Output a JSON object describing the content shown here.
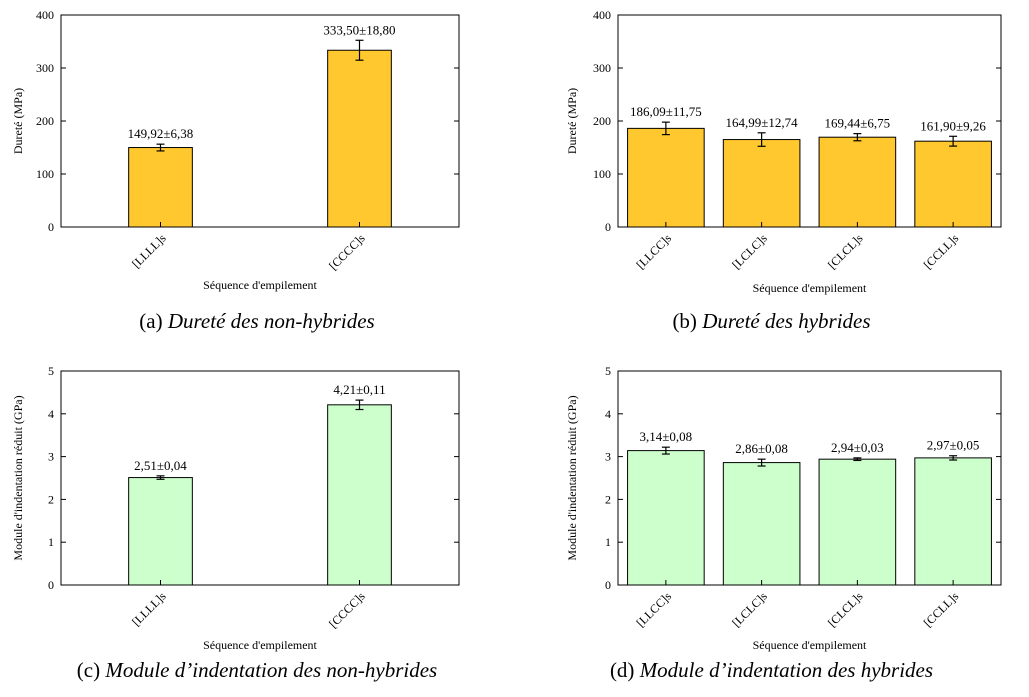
{
  "chart_data": [
    {
      "panel": "a",
      "type": "bar",
      "categories": [
        "[LLLL]s",
        "[CCCC]s"
      ],
      "values": [
        149.92,
        333.5
      ],
      "errors": [
        6.38,
        18.8
      ],
      "data_labels": [
        "149,92±6,38",
        "333,50±18,80"
      ],
      "xlabel": "Séquence d'empilement",
      "ylabel": "Dureté (MPa)",
      "ylim": [
        0,
        400
      ],
      "yticks": [
        0,
        100,
        200,
        300,
        400
      ],
      "bar_color": "#FFC82E",
      "caption_letter": "(a)",
      "caption_title": "Dureté des non-hybrides"
    },
    {
      "panel": "b",
      "type": "bar",
      "categories": [
        "[LLCC]s",
        "[LCLC]s",
        "[CLCL]s",
        "[CCLL]s"
      ],
      "values": [
        186.09,
        164.99,
        169.44,
        161.9
      ],
      "errors": [
        11.75,
        12.74,
        6.75,
        9.26
      ],
      "data_labels": [
        "186,09±11,75",
        "164,99±12,74",
        "169,44±6,75",
        "161,90±9,26"
      ],
      "xlabel": "Séquence d'empilement",
      "ylabel": "Dureté (MPa)",
      "ylim": [
        0,
        400
      ],
      "yticks": [
        0,
        100,
        200,
        300,
        400
      ],
      "bar_color": "#FFC82E",
      "caption_letter": "(b)",
      "caption_title": "Dureté des hybrides"
    },
    {
      "panel": "c",
      "type": "bar",
      "categories": [
        "[LLLL]s",
        "[CCCC]s"
      ],
      "values": [
        2.51,
        4.21
      ],
      "errors": [
        0.04,
        0.11
      ],
      "data_labels": [
        "2,51±0,04",
        "4,21±0,11"
      ],
      "xlabel": "Séquence d'empilement",
      "ylabel": "Module d'indentation réduit (GPa)",
      "ylim": [
        0,
        5
      ],
      "yticks": [
        0,
        1,
        2,
        3,
        4,
        5
      ],
      "bar_color": "#CCFFCC",
      "caption_letter": "(c)",
      "caption_title": "Module d’indentation des non-hybrides"
    },
    {
      "panel": "d",
      "type": "bar",
      "categories": [
        "[LLCC]s",
        "[LCLC]s",
        "[CLCL]s",
        "[CCLL]s"
      ],
      "values": [
        3.14,
        2.86,
        2.94,
        2.97
      ],
      "errors": [
        0.08,
        0.08,
        0.03,
        0.05
      ],
      "data_labels": [
        "3,14±0,08",
        "2,86±0,08",
        "2,94±0,03",
        "2,97±0,05"
      ],
      "xlabel": "Séquence d'empilement",
      "ylabel": "Module d'indentation réduit (GPa)",
      "ylim": [
        0,
        5
      ],
      "yticks": [
        0,
        1,
        2,
        3,
        4,
        5
      ],
      "bar_color": "#CCFFCC",
      "caption_letter": "(d)",
      "caption_title": "Module d’indentation des hybrides"
    }
  ]
}
